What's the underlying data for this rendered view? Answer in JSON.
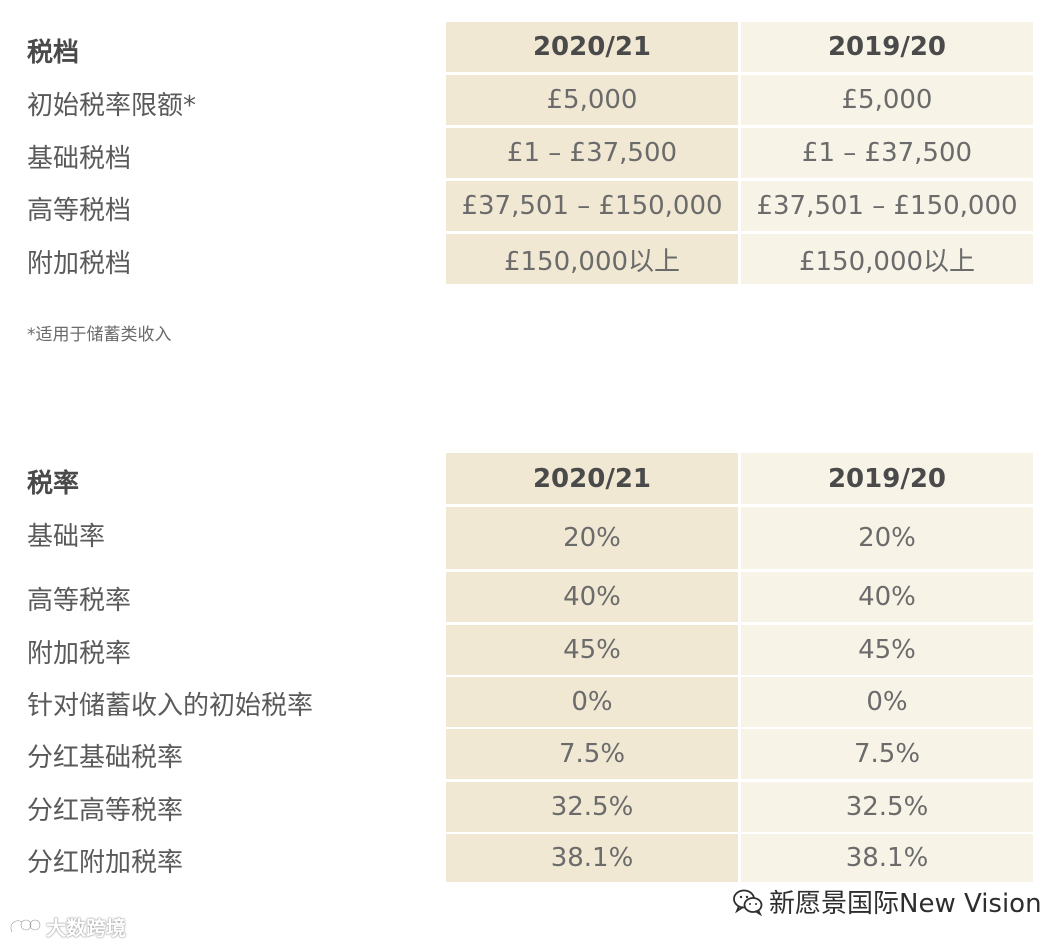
{
  "table1": {
    "header": {
      "label": "税档",
      "col1": "2020/21",
      "col2": "2019/20"
    },
    "rows": [
      {
        "label": "初始税率限额*",
        "col1": "£5,000",
        "col2": "£5,000"
      },
      {
        "label": "基础税档",
        "col1": "£1 – £37,500",
        "col2": "£1 – £37,500"
      },
      {
        "label": "高等税档",
        "col1": "£37,501 – £150,000",
        "col2": "£37,501 – £150,000"
      },
      {
        "label": "附加税档",
        "col1": "£150,000以上",
        "col2": "£150,000以上"
      }
    ],
    "note": "*适用于储蓄类收入"
  },
  "table2": {
    "header": {
      "label": "税率",
      "col1": "2020/21",
      "col2": "2019/20"
    },
    "rows": [
      {
        "label": "基础率",
        "col1": "20%",
        "col2": "20%"
      },
      {
        "label": "高等税率",
        "col1": "40%",
        "col2": "40%"
      },
      {
        "label": "附加税率",
        "col1": "45%",
        "col2": "45%"
      },
      {
        "label": "针对储蓄收入的初始税率",
        "col1": "0%",
        "col2": "0%"
      },
      {
        "label": "分红基础税率",
        "col1": "7.5%",
        "col2": "7.5%"
      },
      {
        "label": "分红高等税率",
        "col1": "32.5%",
        "col2": "32.5%"
      },
      {
        "label": "分红附加税率",
        "col1": "38.1%",
        "col2": "38.1%"
      }
    ]
  },
  "watermarks": {
    "left": "大数跨境",
    "right": "新愿景国际New Vision",
    "left_icon": "datashu-logo-icon",
    "right_icon": "wechat-icon"
  },
  "colors": {
    "col1_bg": "#f1e8d4",
    "col2_bg": "#f8f3e7",
    "text": "#5a5a5a"
  }
}
